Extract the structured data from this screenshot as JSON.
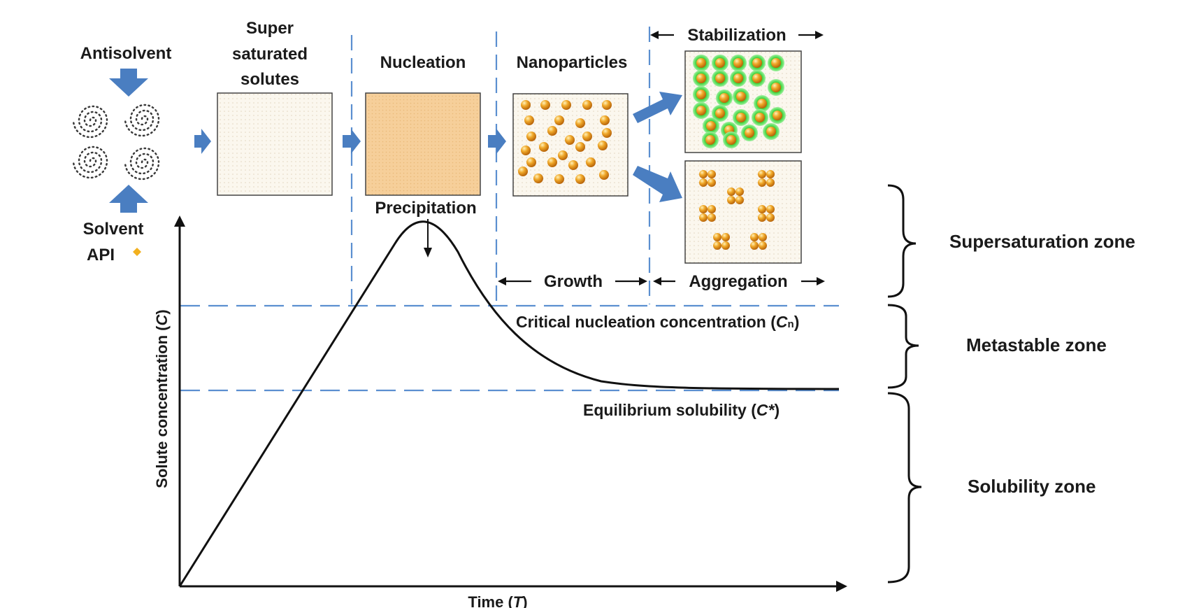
{
  "diagram": {
    "steps": {
      "antisolvent": "Antisolvent",
      "super_line1": "Super",
      "super_line2": "saturated",
      "super_line3": "solutes",
      "nucleation": "Nucleation",
      "nanoparticles": "Nanoparticles",
      "stabilization": "Stabilization",
      "solvent": "Solvent",
      "api": "API",
      "precipitation": "Precipitation",
      "growth": "Growth",
      "aggregation": "Aggregation"
    },
    "levels": {
      "critical_prefix": "Critical nucleation concentration (",
      "critical_symbol": "C",
      "critical_subscript": "n",
      "critical_suffix": ")",
      "equilibrium_prefix": "Equilibrium solubility (",
      "equilibrium_symbol": "C*",
      "equilibrium_suffix": ")"
    },
    "axes": {
      "y_prefix": "Solute concentration (",
      "y_symbol": "C",
      "y_suffix": ")",
      "x_prefix": "Time (",
      "x_symbol": "T",
      "x_suffix": ")"
    },
    "zones": {
      "supersaturation": "Supersaturation zone",
      "metastable": "Metastable zone",
      "solubility": "Solubility zone"
    },
    "colors": {
      "arrow_blue": "#4a7ec1",
      "dash_blue": "#5b8fd0",
      "nucleation_fill": "#f6cf9a",
      "particle": "#e59a1c",
      "stabilizer": "#2fd12f",
      "curve": "#111111"
    }
  }
}
